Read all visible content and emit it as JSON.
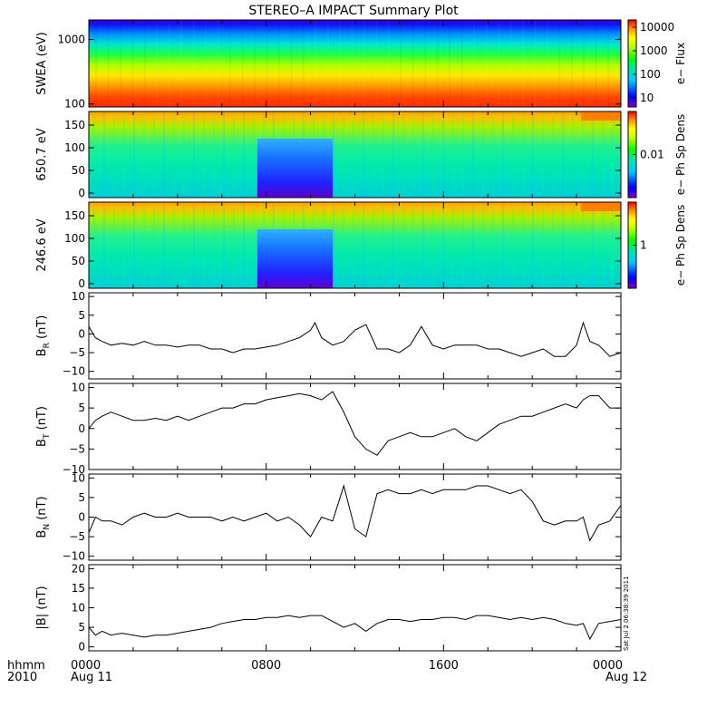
{
  "title": "STEREO–A IMPACT Summary Plot",
  "footer": {
    "row_label_top": "hhmm",
    "row_label_bottom": "2010",
    "date_start": "Aug 11",
    "date_end": "Aug 12",
    "stamp": "Sat Jul  2 06:38:39 2011"
  },
  "chart_data": [
    {
      "type": "heatmap",
      "ylabel": "SWEA (eV)",
      "yscale": "log",
      "ylim": [
        90,
        2000
      ],
      "yticks": [
        100,
        1000
      ],
      "ytick_labels": [
        "100",
        "1000"
      ],
      "colorbar": {
        "label": "e− Flux",
        "scale": "log",
        "ticks": [
          "10",
          "100",
          "1000",
          "10000"
        ]
      },
      "x_hours": [
        0,
        24
      ]
    },
    {
      "type": "heatmap",
      "ylabel": "650.7 eV",
      "ylim": [
        -10,
        180
      ],
      "yticks": [
        0,
        50,
        100,
        150
      ],
      "ytick_labels": [
        "0",
        "50",
        "100",
        "150"
      ],
      "colorbar": {
        "label": "e− Ph Sp Dens",
        "ticks": [
          "0.01"
        ]
      },
      "low_region_hours": [
        7.6,
        11
      ]
    },
    {
      "type": "heatmap",
      "ylabel": "246.6 eV",
      "ylim": [
        -10,
        180
      ],
      "yticks": [
        0,
        50,
        100,
        150
      ],
      "ytick_labels": [
        "0",
        "50",
        "100",
        "150"
      ],
      "colorbar": {
        "label": "e− Ph Sp Dens",
        "ticks": [
          "1"
        ]
      },
      "low_region_hours": [
        7.6,
        11
      ]
    },
    {
      "type": "line",
      "ylabel": "B",
      "ylabel_sub": "R",
      "ylabel_unit": "(nT)",
      "ylim": [
        -12,
        11
      ],
      "yticks": [
        -10,
        -5,
        0,
        5,
        10
      ],
      "ytick_labels": [
        "−10",
        "−5",
        "0",
        "5",
        "10"
      ],
      "x": [
        0,
        0.3,
        0.6,
        1,
        1.5,
        2,
        2.5,
        3,
        3.5,
        4,
        4.5,
        5,
        5.5,
        6,
        6.5,
        7,
        7.5,
        8,
        8.5,
        9,
        9.5,
        10,
        10.2,
        10.5,
        11,
        11.5,
        12,
        12.5,
        13,
        13.5,
        14,
        14.5,
        15,
        15.5,
        16,
        16.5,
        17,
        17.5,
        18,
        18.5,
        19,
        19.5,
        20,
        20.5,
        21,
        21.5,
        22,
        22.3,
        22.6,
        23,
        23.5,
        24
      ],
      "y": [
        2,
        -1,
        -2,
        -3,
        -2.5,
        -3,
        -2,
        -3,
        -3,
        -3.5,
        -3,
        -3,
        -4,
        -4,
        -5,
        -4,
        -4,
        -3.5,
        -3,
        -2,
        -1,
        1,
        3,
        -1,
        -3,
        -2,
        1,
        2.5,
        -4,
        -4,
        -5,
        -3,
        2,
        -3,
        -4,
        -3,
        -3,
        -3,
        -4,
        -4,
        -5,
        -6,
        -5,
        -4,
        -6,
        -6,
        -3,
        3,
        -2,
        -3,
        -6,
        -5
      ]
    },
    {
      "type": "line",
      "ylabel": "B",
      "ylabel_sub": "T",
      "ylabel_unit": "(nT)",
      "ylim": [
        -10,
        11
      ],
      "yticks": [
        -10,
        -5,
        0,
        5,
        10
      ],
      "ytick_labels": [
        "−10",
        "−5",
        "0",
        "5",
        "10"
      ],
      "x": [
        0,
        0.3,
        0.6,
        1,
        1.5,
        2,
        2.5,
        3,
        3.5,
        4,
        4.5,
        5,
        5.5,
        6,
        6.5,
        7,
        7.5,
        8,
        8.5,
        9,
        9.5,
        10,
        10.5,
        11,
        11.5,
        12,
        12.5,
        13,
        13.5,
        14,
        14.5,
        15,
        15.5,
        16,
        16.5,
        17,
        17.5,
        18,
        18.5,
        19,
        19.5,
        20,
        20.5,
        21,
        21.5,
        22,
        22.3,
        22.6,
        23,
        23.5,
        24
      ],
      "y": [
        0,
        2,
        3,
        4,
        3,
        2,
        2,
        2.5,
        2,
        3,
        2,
        3,
        4,
        5,
        5,
        6,
        6,
        7,
        7.5,
        8,
        8.5,
        8,
        7,
        9,
        4,
        -2,
        -5,
        -6.5,
        -3,
        -2,
        -1,
        -2,
        -2,
        -1,
        0,
        -2,
        -3,
        -1,
        1,
        2,
        3,
        3,
        4,
        5,
        6,
        5,
        7,
        8,
        8,
        5,
        5
      ]
    },
    {
      "type": "line",
      "ylabel": "B",
      "ylabel_sub": "N",
      "ylabel_unit": "(nT)",
      "ylim": [
        -11,
        11
      ],
      "yticks": [
        -10,
        -5,
        0,
        5,
        10
      ],
      "ytick_labels": [
        "−10",
        "−5",
        "0",
        "5",
        "10"
      ],
      "x": [
        0,
        0.3,
        0.6,
        1,
        1.5,
        2,
        2.5,
        3,
        3.5,
        4,
        4.5,
        5,
        5.5,
        6,
        6.5,
        7,
        7.5,
        8,
        8.5,
        9,
        9.5,
        10,
        10.5,
        11,
        11.5,
        12,
        12.5,
        13,
        13.5,
        14,
        14.5,
        15,
        15.5,
        16,
        16.5,
        17,
        17.5,
        18,
        18.5,
        19,
        19.5,
        20,
        20.5,
        21,
        21.5,
        22,
        22.3,
        22.6,
        23,
        23.5,
        24
      ],
      "y": [
        -4,
        0,
        -1,
        -1,
        -2,
        0,
        1,
        0,
        0,
        1,
        0,
        0,
        0,
        -1,
        0,
        -1,
        0,
        1,
        -1,
        0,
        -2,
        -5,
        0,
        -1,
        8,
        -3,
        -5,
        6,
        7,
        6,
        6,
        7,
        6,
        7,
        7,
        7,
        8,
        8,
        7,
        6,
        7,
        4,
        -1,
        -2,
        -1,
        -1,
        0,
        -6,
        -2,
        -1,
        3
      ]
    },
    {
      "type": "line",
      "ylabel": "|B|",
      "ylabel_unit": "(nT)",
      "ylim": [
        -1,
        21
      ],
      "yticks": [
        0,
        5,
        10,
        15,
        20
      ],
      "ytick_labels": [
        "0",
        "5",
        "10",
        "15",
        "20"
      ],
      "x": [
        0,
        0.3,
        0.6,
        1,
        1.5,
        2,
        2.5,
        3,
        3.5,
        4,
        4.5,
        5,
        5.5,
        6,
        6.5,
        7,
        7.5,
        8,
        8.5,
        9,
        9.5,
        10,
        10.5,
        11,
        11.5,
        12,
        12.5,
        13,
        13.5,
        14,
        14.5,
        15,
        15.5,
        16,
        16.5,
        17,
        17.5,
        18,
        18.5,
        19,
        19.5,
        20,
        20.5,
        21,
        21.5,
        22,
        22.3,
        22.6,
        23,
        23.5,
        24
      ],
      "y": [
        5,
        3,
        4,
        3,
        3.5,
        3,
        2.5,
        3,
        3,
        3.5,
        4,
        4.5,
        5,
        6,
        6.5,
        7,
        7,
        7.5,
        7.5,
        8,
        7.5,
        8,
        8,
        6.5,
        5,
        6,
        4,
        6,
        7,
        7,
        6.5,
        7,
        7,
        7.5,
        7.5,
        7,
        8,
        8,
        7.5,
        7,
        7.5,
        7,
        7.5,
        7,
        6,
        5.5,
        6,
        2,
        6,
        6.5,
        7
      ]
    },
    {
      "type": "axis",
      "x_hours": [
        0,
        8,
        16,
        24
      ],
      "xtick_labels": [
        "0000",
        "0800",
        "1600",
        "0000"
      ]
    }
  ]
}
